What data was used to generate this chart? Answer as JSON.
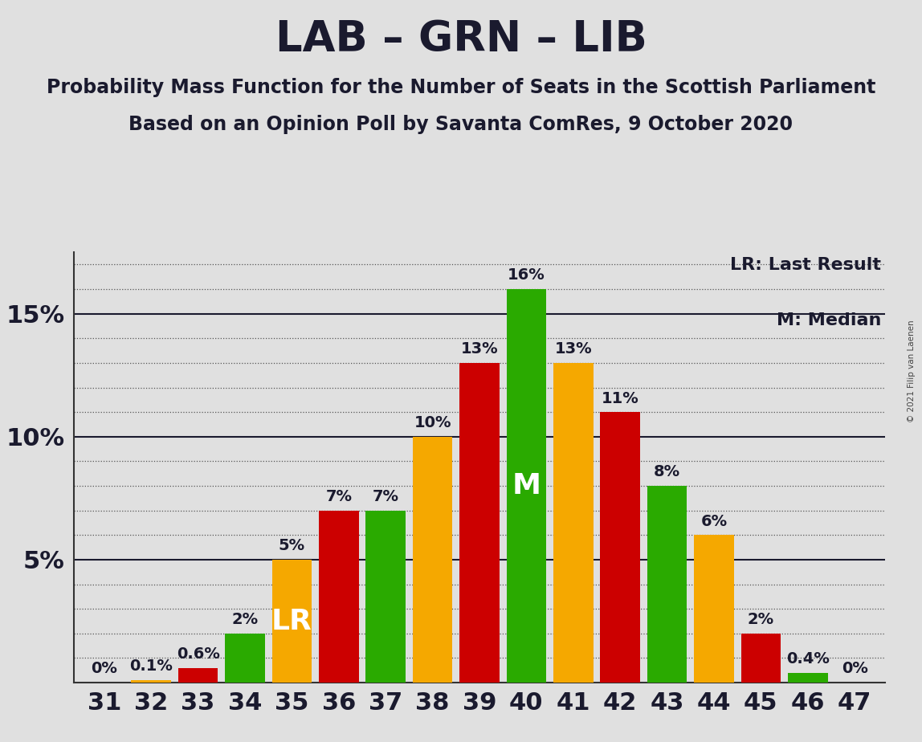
{
  "title": "LAB – GRN – LIB",
  "subtitle1": "Probability Mass Function for the Number of Seats in the Scottish Parliament",
  "subtitle2": "Based on an Opinion Poll by Savanta ComRes, 9 October 2020",
  "copyright": "© 2021 Filip van Laenen",
  "legend1": "LR: Last Result",
  "legend2": "M: Median",
  "background_color": "#e0e0e0",
  "seats": [
    31,
    32,
    33,
    34,
    35,
    36,
    37,
    38,
    39,
    40,
    41,
    42,
    43,
    44,
    45,
    46,
    47
  ],
  "values": [
    0.0,
    0.1,
    0.6,
    2.0,
    5.0,
    7.0,
    7.0,
    10.0,
    13.0,
    16.0,
    13.0,
    11.0,
    8.0,
    6.0,
    2.0,
    0.4,
    0.0
  ],
  "colors": [
    "#f5a800",
    "#f5a800",
    "#cc0000",
    "#2aaa00",
    "#f5a800",
    "#cc0000",
    "#2aaa00",
    "#f5a800",
    "#cc0000",
    "#2aaa00",
    "#f5a800",
    "#cc0000",
    "#2aaa00",
    "#f5a800",
    "#cc0000",
    "#2aaa00",
    "#f5a800"
  ],
  "bar_labels": [
    "0%",
    "0.1%",
    "0.6%",
    "2%",
    "5%",
    "7%",
    "7%",
    "10%",
    "13%",
    "16%",
    "13%",
    "11%",
    "8%",
    "6%",
    "2%",
    "0.4%",
    "0%"
  ],
  "lr_seat": 35,
  "median_seat": 40,
  "ylim_max": 17.5,
  "solid_yticks": [
    5,
    10,
    15
  ],
  "dot_yticks": [
    1,
    2,
    3,
    4,
    6,
    7,
    8,
    9,
    11,
    12,
    13,
    14,
    16,
    17
  ],
  "title_fontsize": 38,
  "subtitle_fontsize": 17,
  "axis_fontsize": 22,
  "label_fontsize": 14,
  "annotation_fontsize": 26,
  "legend_fontsize": 16
}
